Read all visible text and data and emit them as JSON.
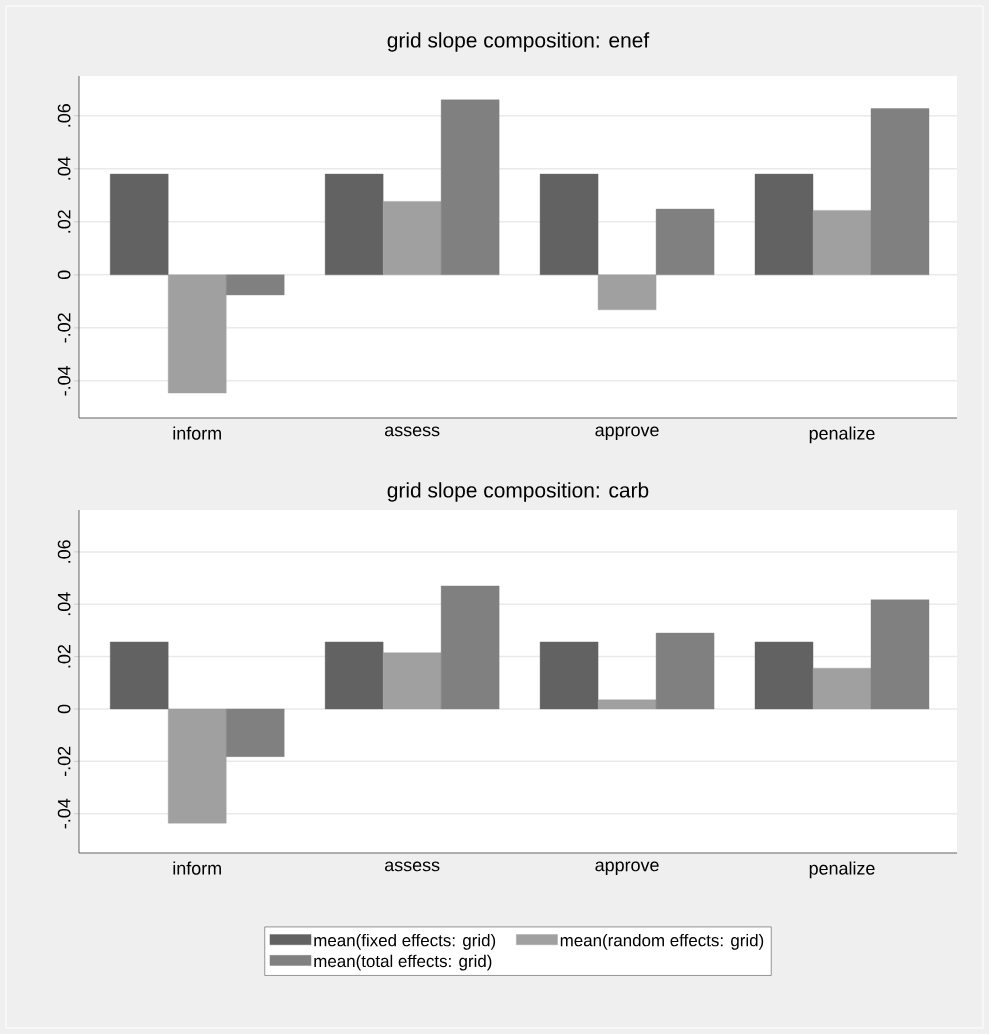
{
  "chart_data": [
    {
      "type": "bar",
      "title": "grid slope composition: enef",
      "categories": [
        "inform",
        "assess",
        "approve",
        "penalize"
      ],
      "series": [
        {
          "color": "#626262",
          "values": [
            0.038,
            0.038,
            0.038,
            0.038
          ]
        },
        {
          "color": "#a0a0a0",
          "values": [
            -0.0446,
            0.0277,
            -0.0132,
            0.0243
          ]
        },
        {
          "color": "#808080",
          "values": [
            -0.0076,
            0.066,
            0.0248,
            0.0627
          ]
        }
      ],
      "ylim": [
        -0.054,
        0.075
      ],
      "yticks": [
        {
          "value": -0.04,
          "label": "-.04"
        },
        {
          "value": -0.02,
          "label": "-.02"
        },
        0,
        {
          "value": 0.02,
          "label": ".02"
        },
        {
          "value": 0.04,
          "label": ".04"
        },
        {
          "value": 0.06,
          "label": ".06"
        }
      ],
      "grid": "y"
    },
    {
      "type": "bar",
      "title": "grid slope composition: carb",
      "categories": [
        "inform",
        "assess",
        "approve",
        "penalize"
      ],
      "series": [
        {
          "name": "mean(fixed effects: grid)",
          "color": "#626262",
          "values": [
            0.0256,
            0.0256,
            0.0256,
            0.0256
          ]
        },
        {
          "name": "mean(random effects: grid)",
          "color": "#a0a0a0",
          "values": [
            -0.0436,
            0.0215,
            0.0035,
            0.0156
          ]
        },
        {
          "name": "mean(total effects: grid)",
          "color": "#808080",
          "values": [
            -0.0182,
            0.047,
            0.029,
            0.0417
          ]
        }
      ],
      "ylim": [
        -0.055,
        0.076
      ],
      "yticks": [
        {
          "value": -0.04,
          "label": "-.04"
        },
        {
          "value": -0.02,
          "label": "-.02"
        },
        0,
        {
          "value": 0.02,
          "label": ".02"
        },
        {
          "value": 0.04,
          "label": ".04"
        },
        {
          "value": 0.06,
          "label": ".06"
        }
      ],
      "grid": "y",
      "legend": "bottom"
    }
  ]
}
